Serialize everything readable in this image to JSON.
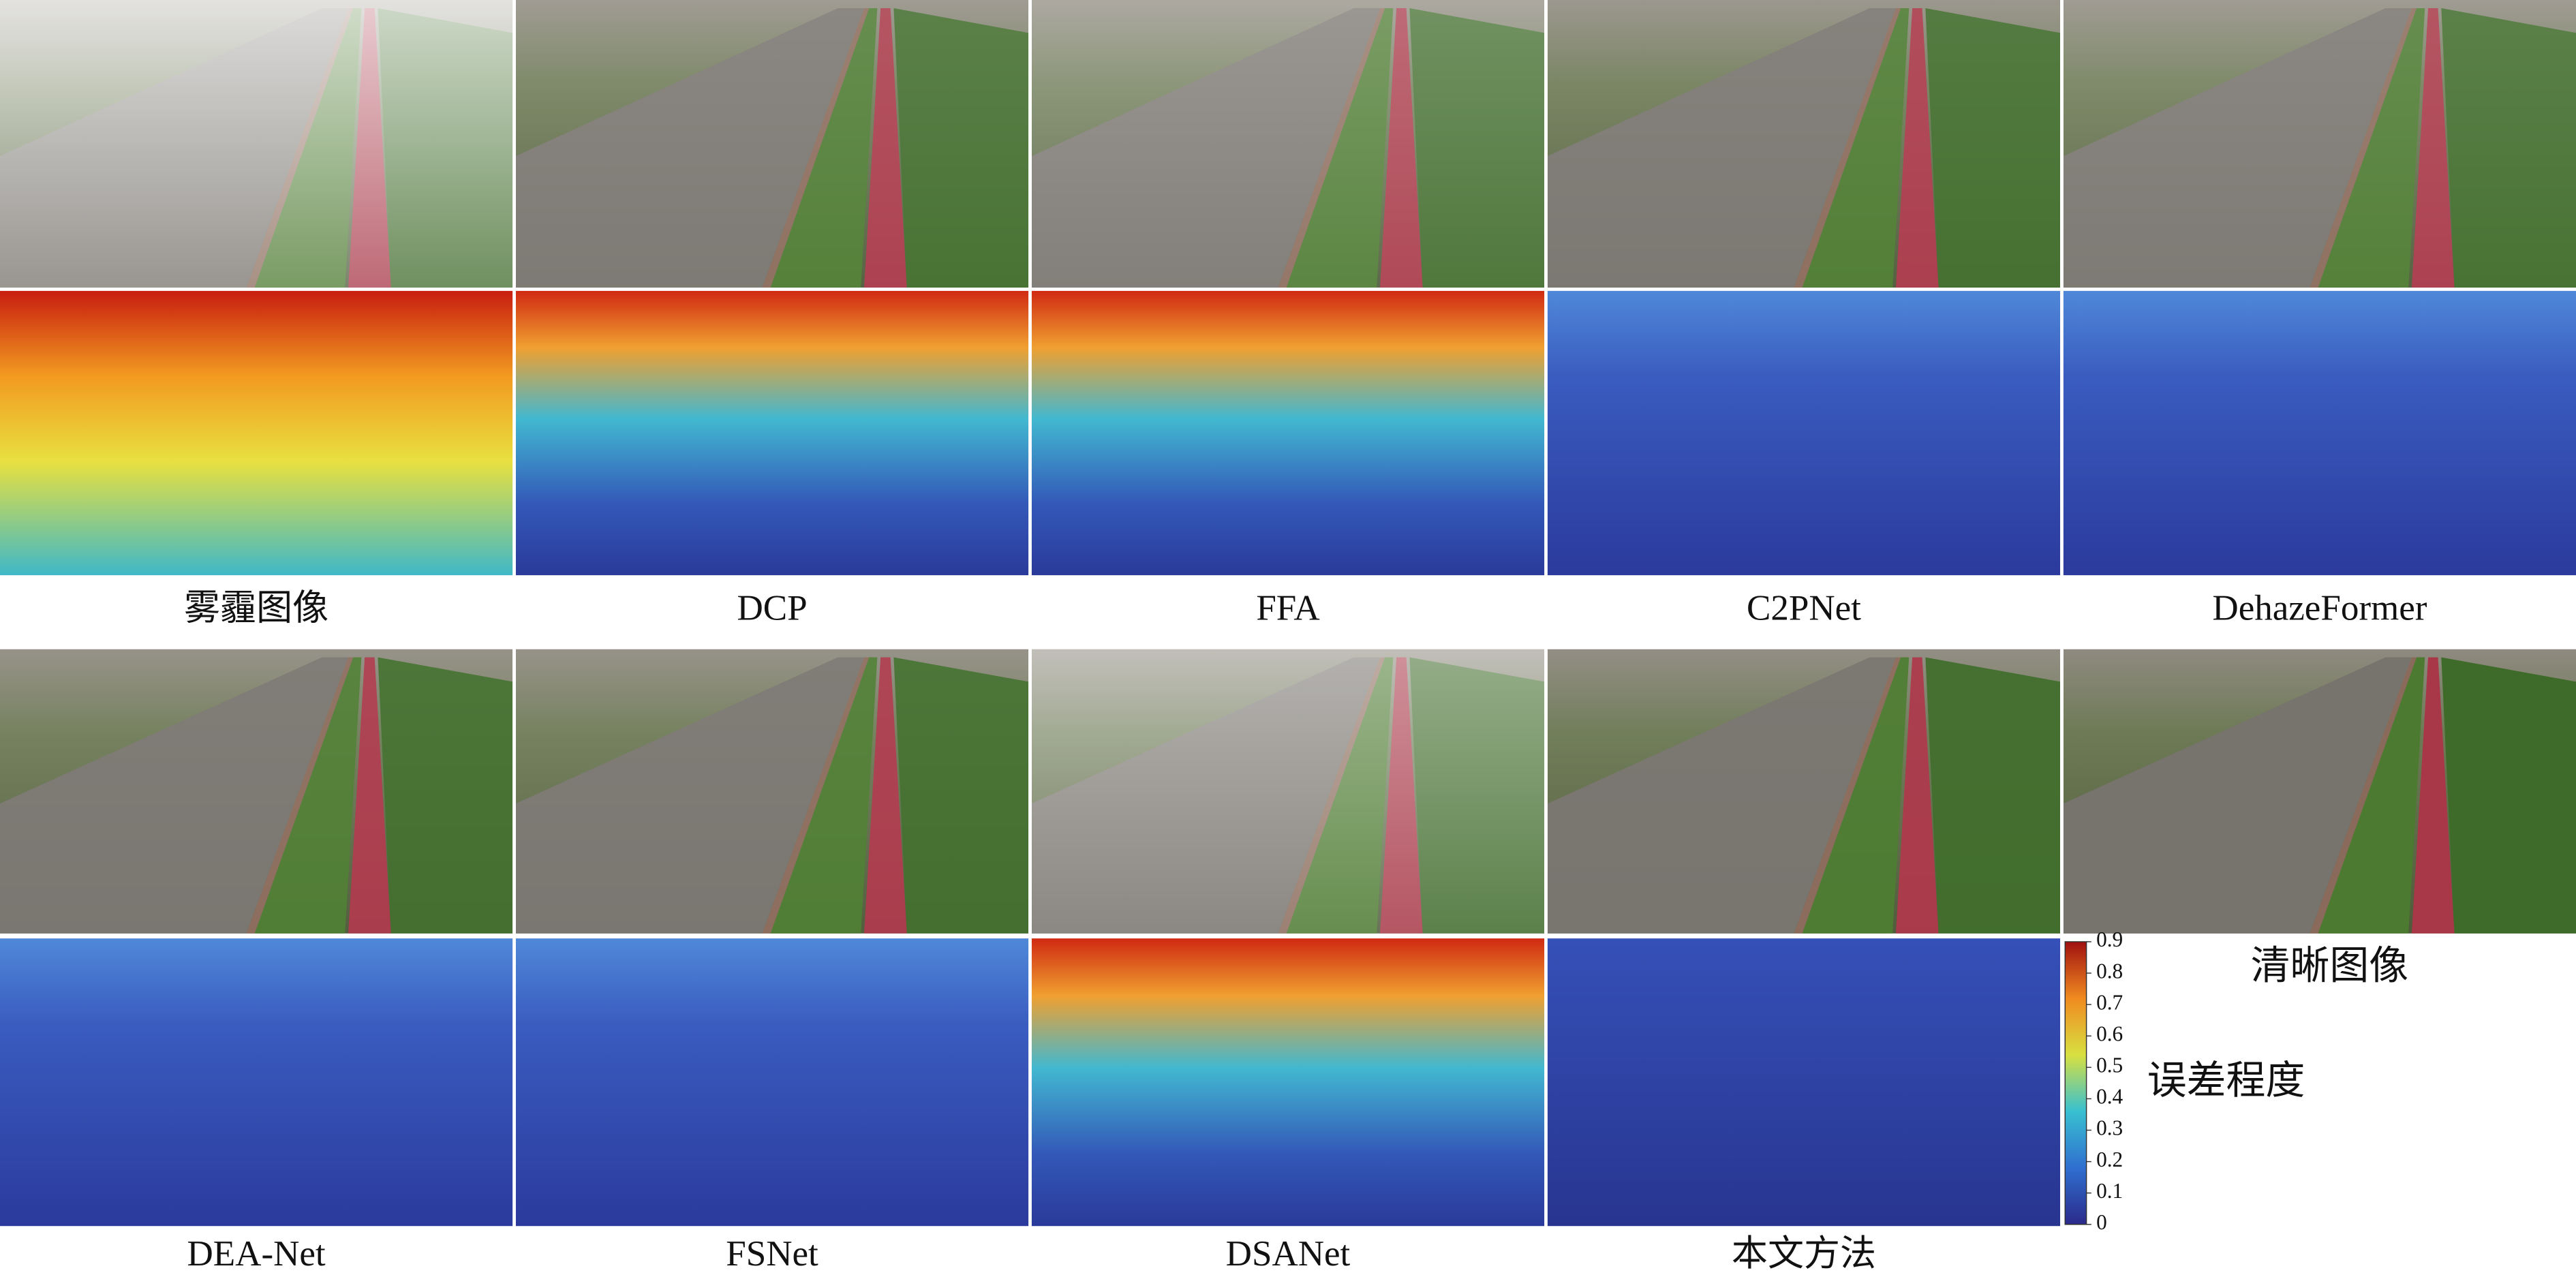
{
  "figure": {
    "top_labels": [
      "雾霾图像",
      "DCP",
      "FFA",
      "C2PNet",
      "DehazeFormer"
    ],
    "bottom_labels": [
      "DEA-Net",
      "FSNet",
      "DSANet",
      "本文方法"
    ],
    "clear_label": "清晰图像",
    "colorbar": {
      "title": "误差程度",
      "lim": [
        0,
        0.9
      ],
      "ticks": [
        0,
        0.1,
        0.2,
        0.3,
        0.4,
        0.5,
        0.6,
        0.7,
        0.8,
        0.9
      ]
    }
  }
}
